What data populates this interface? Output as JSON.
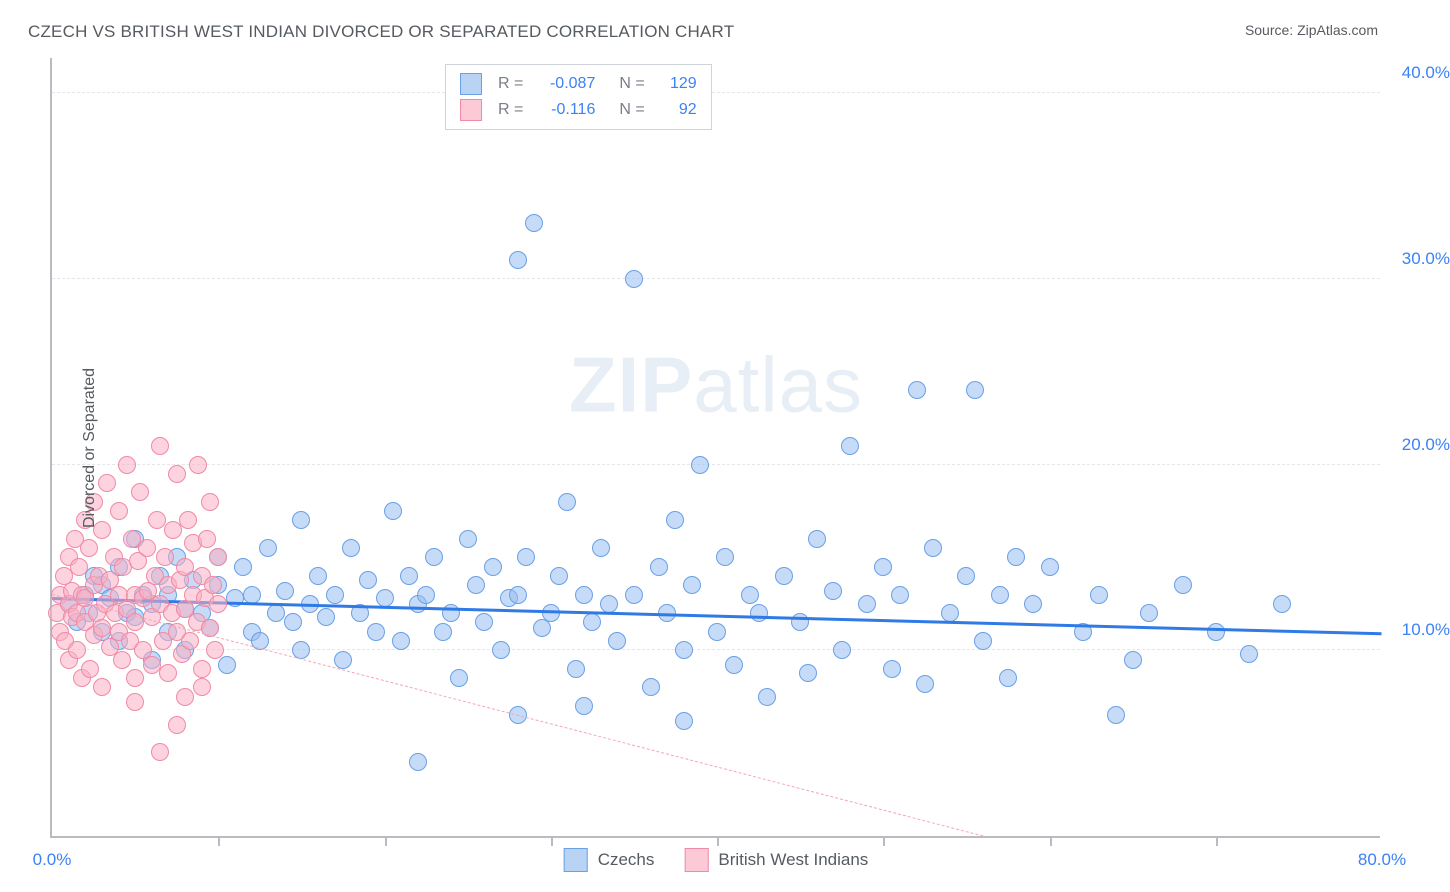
{
  "header": {
    "title": "CZECH VS BRITISH WEST INDIAN DIVORCED OR SEPARATED CORRELATION CHART",
    "source": "Source: ZipAtlas.com"
  },
  "chart": {
    "type": "scatter",
    "y_axis_label": "Divorced or Separated",
    "xlim": [
      0,
      80
    ],
    "ylim": [
      0,
      42
    ],
    "grid_y": [
      10,
      20,
      30,
      40
    ],
    "grid_color": "#e4e6ea",
    "axis_color": "#b8bcc0",
    "x_ticks_at": [
      10,
      20,
      30,
      40,
      50,
      60,
      70
    ],
    "x_labels": [
      {
        "at": 0,
        "text": "0.0%"
      },
      {
        "at": 80,
        "text": "80.0%"
      }
    ],
    "y_labels": [
      {
        "at": 10,
        "text": "10.0%"
      },
      {
        "at": 20,
        "text": "20.0%"
      },
      {
        "at": 30,
        "text": "30.0%"
      },
      {
        "at": 40,
        "text": "40.0%"
      }
    ],
    "watermark": {
      "zip": "ZIP",
      "atlas": "atlas"
    },
    "legend_stats": [
      {
        "swatch_fill": "#b9d3f4",
        "swatch_border": "#6aa0e6",
        "r_label": "R =",
        "r_val": "-0.087",
        "n_label": "N =",
        "n_val": "129"
      },
      {
        "swatch_fill": "#fcc9d6",
        "swatch_border": "#f08aa6",
        "r_label": "R =",
        "r_val": "-0.116",
        "n_label": "N =",
        "n_val": "92"
      }
    ],
    "legend_bottom": [
      {
        "swatch_fill": "#b9d3f4",
        "swatch_border": "#6aa0e6",
        "label": "Czechs"
      },
      {
        "swatch_fill": "#fcc9d6",
        "swatch_border": "#f08aa6",
        "label": "British West Indians"
      }
    ],
    "series": [
      {
        "name": "Czechs",
        "marker_fill": "rgba(150, 190, 240, 0.55)",
        "marker_border": "#6aa0e6",
        "marker_size": 18,
        "trend": {
          "x1": 0,
          "y1": 12.7,
          "x2": 80,
          "y2": 10.8,
          "color": "#2f7ae5",
          "width": 3,
          "dash": "solid"
        },
        "points": [
          [
            1,
            12.5
          ],
          [
            1.5,
            11.5
          ],
          [
            2,
            13
          ],
          [
            2.2,
            12
          ],
          [
            2.5,
            14
          ],
          [
            3,
            11
          ],
          [
            3,
            13.5
          ],
          [
            3.5,
            12.8
          ],
          [
            4,
            10.5
          ],
          [
            4,
            14.5
          ],
          [
            4.5,
            12
          ],
          [
            5,
            11.8
          ],
          [
            5,
            16
          ],
          [
            5.5,
            13
          ],
          [
            6,
            9.5
          ],
          [
            6,
            12.5
          ],
          [
            6.5,
            14
          ],
          [
            7,
            11
          ],
          [
            7,
            13
          ],
          [
            7.5,
            15
          ],
          [
            8,
            12.2
          ],
          [
            8,
            10
          ],
          [
            8.5,
            13.8
          ],
          [
            9,
            12
          ],
          [
            9.5,
            11.2
          ],
          [
            10,
            13.5
          ],
          [
            10,
            15
          ],
          [
            10.5,
            9.2
          ],
          [
            11,
            12.8
          ],
          [
            11.5,
            14.5
          ],
          [
            12,
            11
          ],
          [
            12,
            13
          ],
          [
            12.5,
            10.5
          ],
          [
            13,
            15.5
          ],
          [
            13.5,
            12
          ],
          [
            14,
            13.2
          ],
          [
            14.5,
            11.5
          ],
          [
            15,
            17
          ],
          [
            15,
            10
          ],
          [
            15.5,
            12.5
          ],
          [
            16,
            14
          ],
          [
            16.5,
            11.8
          ],
          [
            17,
            13
          ],
          [
            17.5,
            9.5
          ],
          [
            18,
            15.5
          ],
          [
            18.5,
            12
          ],
          [
            19,
            13.8
          ],
          [
            19.5,
            11
          ],
          [
            20,
            12.8
          ],
          [
            20.5,
            17.5
          ],
          [
            21,
            10.5
          ],
          [
            21.5,
            14
          ],
          [
            22,
            12.5
          ],
          [
            22.5,
            13
          ],
          [
            23,
            15
          ],
          [
            23.5,
            11
          ],
          [
            24,
            12
          ],
          [
            24.5,
            8.5
          ],
          [
            25,
            16
          ],
          [
            25.5,
            13.5
          ],
          [
            26,
            11.5
          ],
          [
            26.5,
            14.5
          ],
          [
            27,
            10
          ],
          [
            27.5,
            12.8
          ],
          [
            28,
            31
          ],
          [
            28,
            13
          ],
          [
            28.5,
            15
          ],
          [
            29,
            33
          ],
          [
            29.5,
            11.2
          ],
          [
            30,
            12
          ],
          [
            30.5,
            14
          ],
          [
            31,
            18
          ],
          [
            31.5,
            9
          ],
          [
            32,
            13
          ],
          [
            32.5,
            11.5
          ],
          [
            33,
            15.5
          ],
          [
            33.5,
            12.5
          ],
          [
            34,
            10.5
          ],
          [
            35,
            13
          ],
          [
            35,
            30
          ],
          [
            36,
            8
          ],
          [
            36.5,
            14.5
          ],
          [
            37,
            12
          ],
          [
            37.5,
            17
          ],
          [
            38,
            10
          ],
          [
            38.5,
            13.5
          ],
          [
            39,
            20
          ],
          [
            40,
            11
          ],
          [
            40.5,
            15
          ],
          [
            41,
            9.2
          ],
          [
            42,
            13
          ],
          [
            42.5,
            12
          ],
          [
            43,
            7.5
          ],
          [
            44,
            14
          ],
          [
            45,
            11.5
          ],
          [
            45.5,
            8.8
          ],
          [
            46,
            16
          ],
          [
            47,
            13.2
          ],
          [
            47.5,
            10
          ],
          [
            48,
            21
          ],
          [
            49,
            12.5
          ],
          [
            50,
            14.5
          ],
          [
            50.5,
            9
          ],
          [
            51,
            13
          ],
          [
            52,
            24
          ],
          [
            52.5,
            8.2
          ],
          [
            53,
            15.5
          ],
          [
            54,
            12
          ],
          [
            55,
            14
          ],
          [
            55.5,
            24
          ],
          [
            56,
            10.5
          ],
          [
            57,
            13
          ],
          [
            57.5,
            8.5
          ],
          [
            58,
            15
          ],
          [
            59,
            12.5
          ],
          [
            60,
            14.5
          ],
          [
            62,
            11
          ],
          [
            63,
            13
          ],
          [
            64,
            6.5
          ],
          [
            65,
            9.5
          ],
          [
            66,
            12
          ],
          [
            68,
            13.5
          ],
          [
            70,
            11
          ],
          [
            72,
            9.8
          ],
          [
            74,
            12.5
          ],
          [
            22,
            4
          ],
          [
            28,
            6.5
          ],
          [
            32,
            7
          ],
          [
            38,
            6.2
          ]
        ]
      },
      {
        "name": "British West Indians",
        "marker_fill": "rgba(250, 175, 195, 0.55)",
        "marker_border": "#f08aa6",
        "marker_size": 18,
        "trend": {
          "x1": 0,
          "y1": 13.0,
          "x2": 56,
          "y2": 0,
          "color": "#f5a6bb",
          "width": 1.5,
          "dash": "dashed"
        },
        "points": [
          [
            0.3,
            12
          ],
          [
            0.5,
            13
          ],
          [
            0.5,
            11
          ],
          [
            0.7,
            14
          ],
          [
            0.8,
            10.5
          ],
          [
            1,
            12.5
          ],
          [
            1,
            15
          ],
          [
            1,
            9.5
          ],
          [
            1.2,
            13.2
          ],
          [
            1.2,
            11.8
          ],
          [
            1.4,
            16
          ],
          [
            1.5,
            12
          ],
          [
            1.5,
            10
          ],
          [
            1.6,
            14.5
          ],
          [
            1.8,
            13
          ],
          [
            1.8,
            8.5
          ],
          [
            2,
            17
          ],
          [
            2,
            11.5
          ],
          [
            2,
            12.8
          ],
          [
            2.2,
            15.5
          ],
          [
            2.3,
            9
          ],
          [
            2.5,
            13.5
          ],
          [
            2.5,
            18
          ],
          [
            2.5,
            10.8
          ],
          [
            2.7,
            12
          ],
          [
            2.8,
            14
          ],
          [
            3,
            11.2
          ],
          [
            3,
            16.5
          ],
          [
            3,
            8
          ],
          [
            3.2,
            12.5
          ],
          [
            3.3,
            19
          ],
          [
            3.5,
            13.8
          ],
          [
            3.5,
            10.2
          ],
          [
            3.7,
            15
          ],
          [
            3.8,
            12
          ],
          [
            4,
            11
          ],
          [
            4,
            17.5
          ],
          [
            4,
            13
          ],
          [
            4.2,
            9.5
          ],
          [
            4.3,
            14.5
          ],
          [
            4.5,
            20
          ],
          [
            4.5,
            12.2
          ],
          [
            4.7,
            10.5
          ],
          [
            4.8,
            16
          ],
          [
            5,
            13
          ],
          [
            5,
            11.5
          ],
          [
            5,
            8.5
          ],
          [
            5.2,
            14.8
          ],
          [
            5.3,
            18.5
          ],
          [
            5.5,
            12.8
          ],
          [
            5.5,
            10
          ],
          [
            5.7,
            15.5
          ],
          [
            5.8,
            13.2
          ],
          [
            6,
            11.8
          ],
          [
            6,
            9.2
          ],
          [
            6.2,
            14
          ],
          [
            6.3,
            17
          ],
          [
            6.5,
            12.5
          ],
          [
            6.5,
            21
          ],
          [
            6.7,
            10.5
          ],
          [
            6.8,
            15
          ],
          [
            7,
            13.5
          ],
          [
            7,
            8.8
          ],
          [
            7.2,
            12
          ],
          [
            7.3,
            16.5
          ],
          [
            7.5,
            11
          ],
          [
            7.5,
            19.5
          ],
          [
            7.7,
            13.8
          ],
          [
            7.8,
            9.8
          ],
          [
            8,
            14.5
          ],
          [
            8,
            12.2
          ],
          [
            8.2,
            17
          ],
          [
            8.3,
            10.5
          ],
          [
            8.5,
            15.8
          ],
          [
            8.5,
            13
          ],
          [
            8.7,
            11.5
          ],
          [
            8.8,
            20
          ],
          [
            9,
            14
          ],
          [
            9,
            9
          ],
          [
            9.2,
            12.8
          ],
          [
            9.3,
            16
          ],
          [
            9.5,
            11.2
          ],
          [
            9.5,
            18
          ],
          [
            9.7,
            13.5
          ],
          [
            9.8,
            10
          ],
          [
            10,
            15
          ],
          [
            10,
            12.5
          ],
          [
            6.5,
            4.5
          ],
          [
            7.5,
            6
          ],
          [
            5,
            7.2
          ],
          [
            8,
            7.5
          ],
          [
            9,
            8
          ]
        ]
      }
    ]
  }
}
